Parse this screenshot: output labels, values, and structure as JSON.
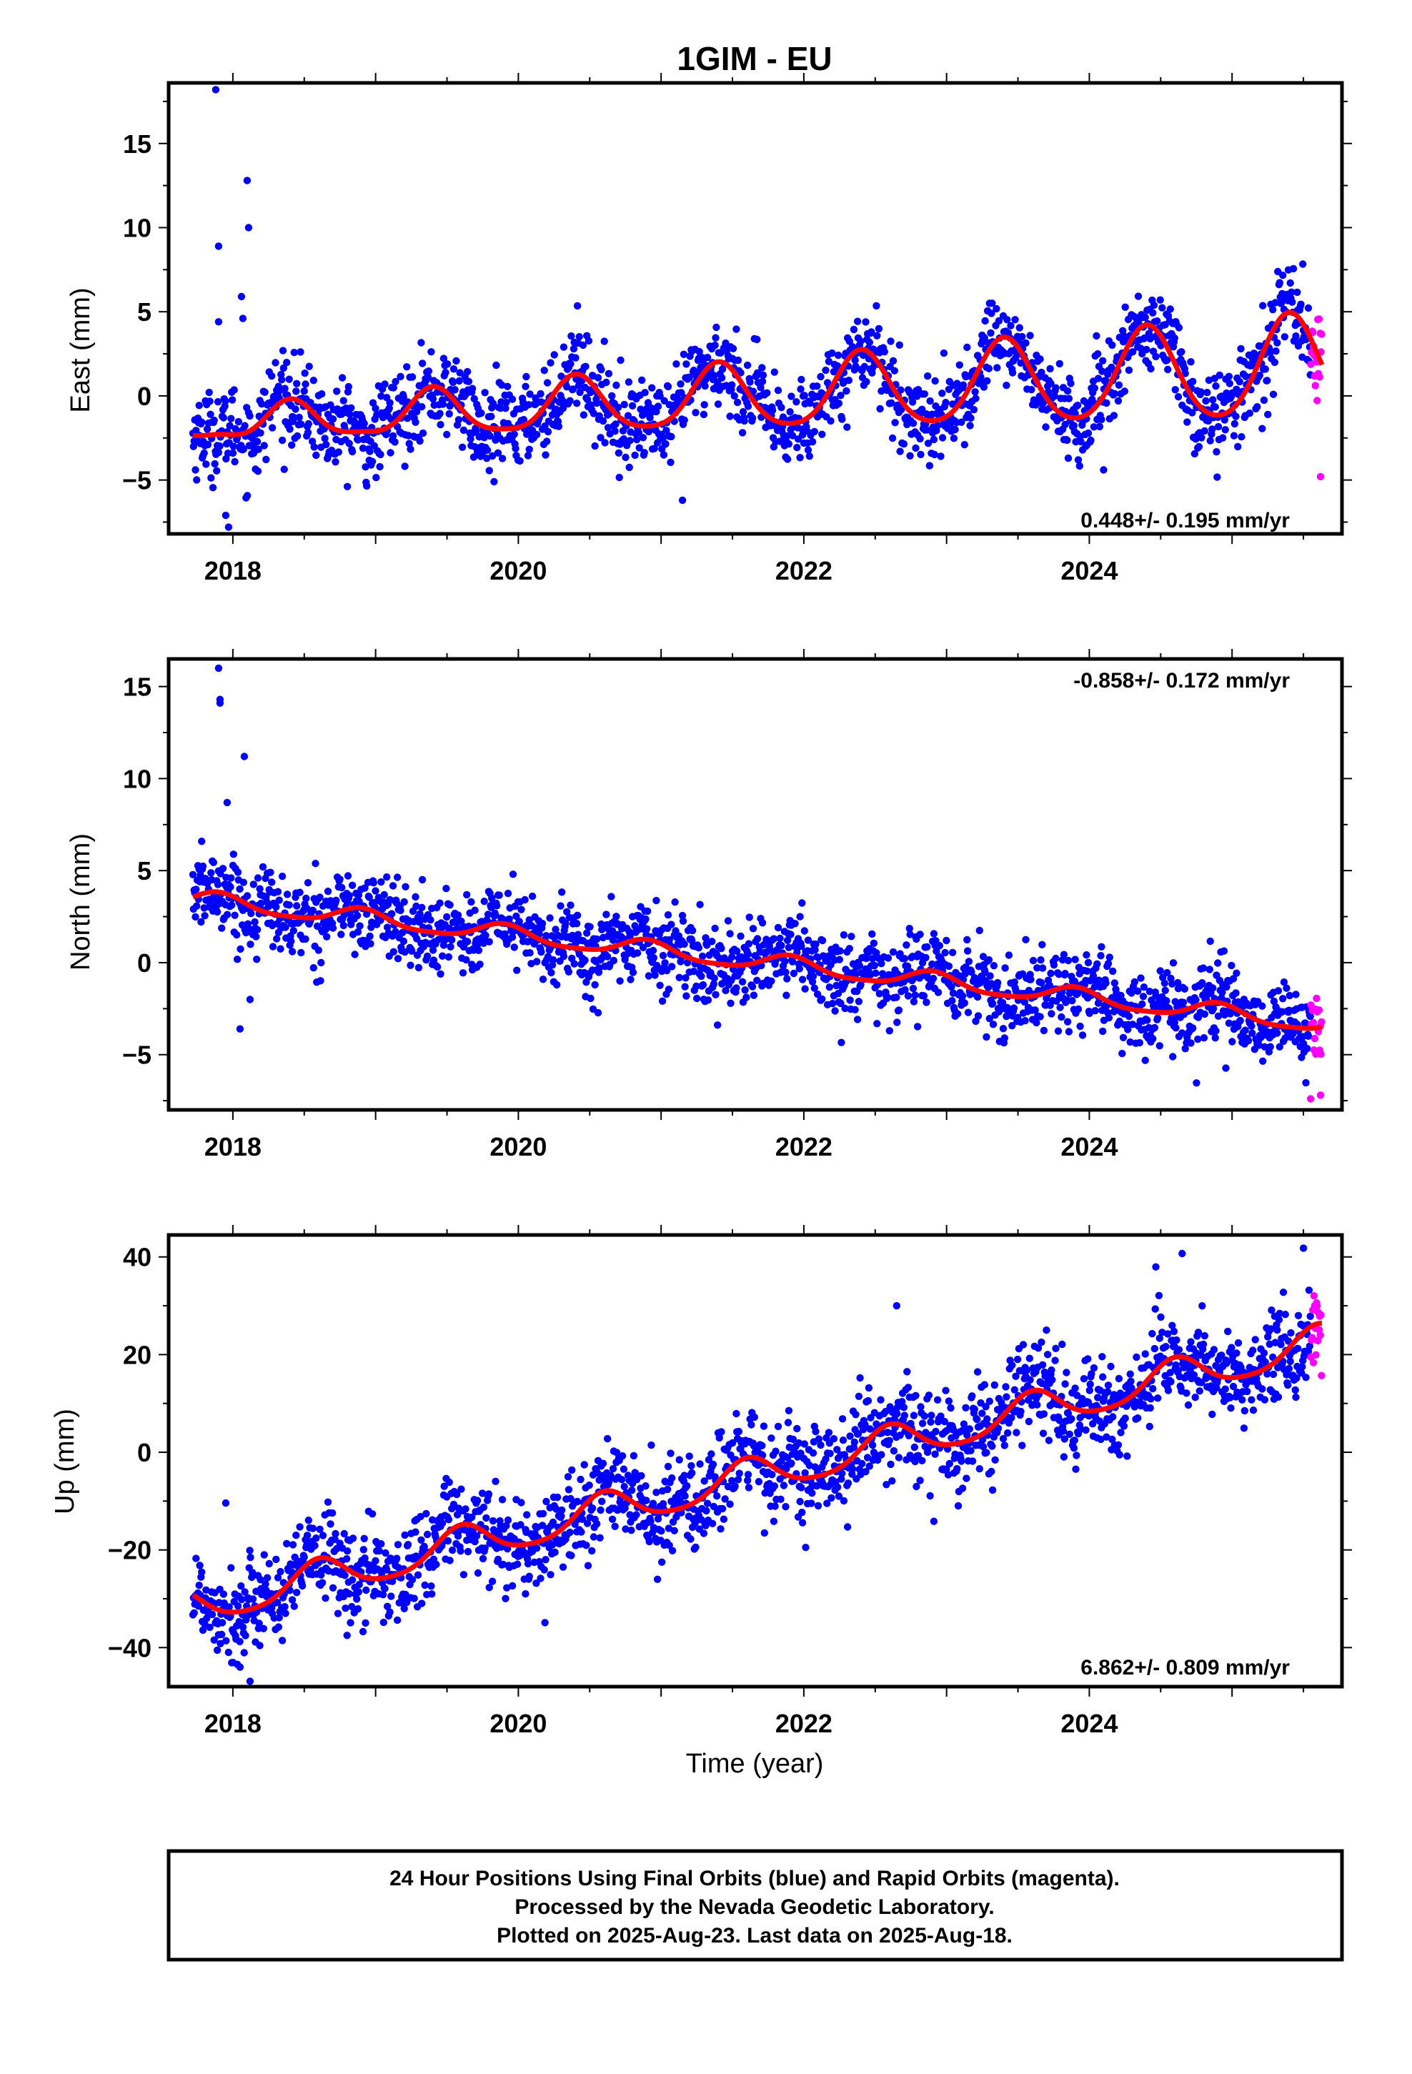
{
  "title": "1GIM - EU",
  "xlabel": "Time (year)",
  "footer": {
    "line1": "24 Hour Positions Using Final Orbits (blue) and Rapid Orbits (magenta).",
    "line2": "Processed by the Nevada Geodetic Laboratory.",
    "line3": "Plotted on 2025-Aug-23. Last data on 2025-Aug-18."
  },
  "colors": {
    "final_orbits": "#0000ff",
    "rapid_orbits": "#ff00ff",
    "model_fit": "#ff0000",
    "frame": "#000000"
  },
  "chart_data": [
    {
      "type": "scatter",
      "name": "east",
      "ylabel": "East (mm)",
      "rate_label": "0.448+/- 0.195 mm/yr",
      "rate_position": "bottom-right",
      "xlim": [
        2017.55,
        2025.77
      ],
      "ylim": [
        -8.2,
        18.6
      ],
      "xticks": [
        2018,
        2020,
        2022,
        2024
      ],
      "yticks": [
        -5,
        0,
        5,
        10,
        15
      ],
      "grid": false,
      "data_start": 2017.72,
      "data_end": 2025.63,
      "rapid_start": 2025.55,
      "fit": {
        "rate": 0.448,
        "ref_epoch": 2021.5,
        "offset": -0.1,
        "annual_amp": 1.9,
        "peak_phase": 0.4,
        "semiannual_amp": 0.3,
        "seasonal_drift": 0.15
      },
      "scatter_sd": 1.25,
      "outliers": [
        [
          2017.88,
          18.2
        ],
        [
          2017.9,
          8.9
        ],
        [
          2017.9,
          4.4
        ],
        [
          2018.1,
          12.8
        ],
        [
          2018.11,
          10.0
        ],
        [
          2018.06,
          5.9
        ],
        [
          2018.07,
          4.6
        ],
        [
          2017.95,
          -7.1
        ],
        [
          2017.97,
          -7.8
        ],
        [
          2019.83,
          -5.1
        ],
        [
          2021.15,
          -6.2
        ],
        [
          2024.1,
          -4.4
        ],
        [
          2025.62,
          -4.8
        ]
      ]
    },
    {
      "type": "scatter",
      "name": "north",
      "ylabel": "North (mm)",
      "rate_label": "-0.858+/- 0.172 mm/yr",
      "rate_position": "top-right",
      "xlim": [
        2017.55,
        2025.77
      ],
      "ylim": [
        -8.0,
        16.5
      ],
      "xticks": [
        2018,
        2020,
        2022,
        2024
      ],
      "yticks": [
        -5,
        0,
        5,
        10,
        15
      ],
      "grid": false,
      "data_start": 2017.72,
      "data_end": 2025.63,
      "rapid_start": 2025.55,
      "fit": {
        "rate": -0.858,
        "ref_epoch": 2021.5,
        "offset": 0.2,
        "annual_amp": 0.45,
        "peak_phase": 0.9,
        "semiannual_amp": 0.1,
        "seasonal_drift": 0.0
      },
      "scatter_sd": 1.05,
      "outliers": [
        [
          2017.9,
          16.0
        ],
        [
          2017.91,
          14.3
        ],
        [
          2017.91,
          14.1
        ],
        [
          2018.08,
          11.2
        ],
        [
          2017.96,
          8.7
        ],
        [
          2018.05,
          -3.6
        ],
        [
          2018.12,
          -2.0
        ],
        [
          2025.55,
          -7.4
        ],
        [
          2025.62,
          -7.2
        ]
      ]
    },
    {
      "type": "scatter",
      "name": "up",
      "ylabel": "Up (mm)",
      "rate_label": "6.862+/- 0.809 mm/yr",
      "rate_position": "bottom-right",
      "xlim": [
        2017.55,
        2025.77
      ],
      "ylim": [
        -48.0,
        44.5
      ],
      "xticks": [
        2018,
        2020,
        2022,
        2024
      ],
      "yticks": [
        -40,
        -20,
        0,
        20,
        40
      ],
      "grid": false,
      "data_start": 2017.72,
      "data_end": 2025.63,
      "rapid_start": 2025.55,
      "fit": {
        "rate": 6.862,
        "ref_epoch": 2021.5,
        "offset": -6.0,
        "annual_amp": 3.6,
        "peak_phase": 0.6,
        "semiannual_amp": 0.6,
        "seasonal_drift": 0.0
      },
      "scatter_sd": 4.8,
      "outliers": [
        [
          2017.95,
          -10.4
        ],
        [
          2018.05,
          -44.0
        ],
        [
          2018.12,
          -46.9
        ],
        [
          2018.8,
          -37.5
        ],
        [
          2020.05,
          -29.0
        ],
        [
          2022.65,
          30.0
        ],
        [
          2024.65,
          40.7
        ],
        [
          2025.5,
          41.8
        ]
      ]
    }
  ]
}
